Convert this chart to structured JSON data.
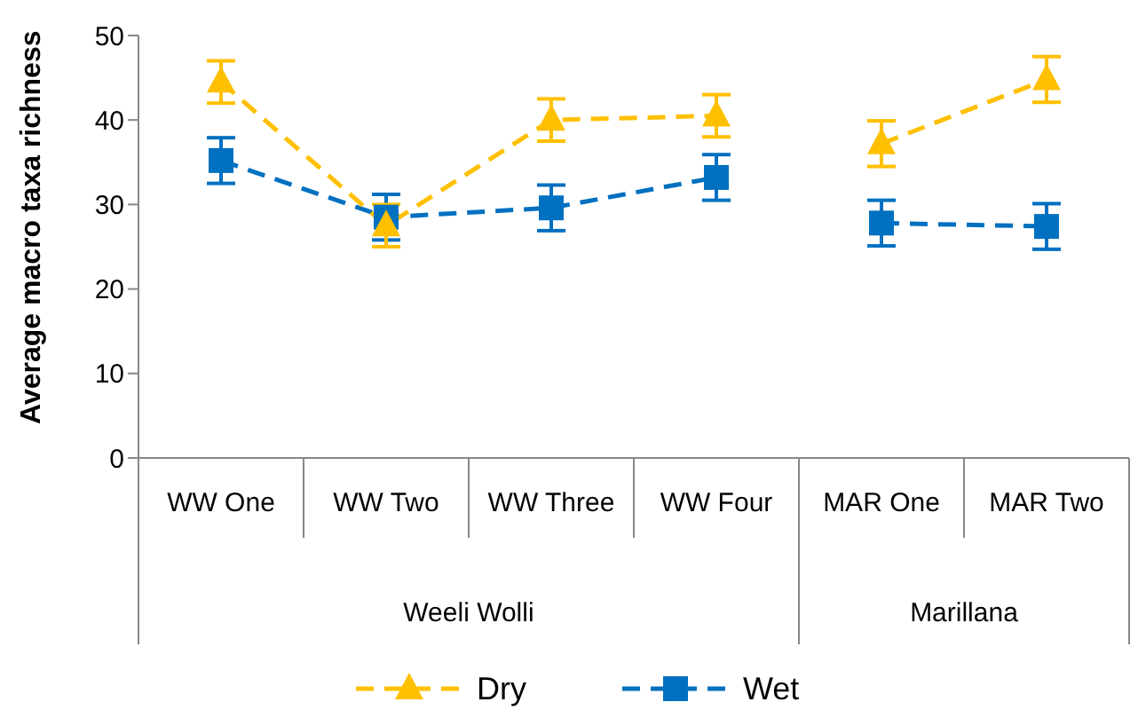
{
  "chart_data": {
    "type": "line",
    "ylabel": "Average macro taxa richness",
    "categories": [
      "WW One",
      "WW Two",
      "WW Three",
      "WW Four",
      "MAR One",
      "MAR Two"
    ],
    "series": [
      {
        "name": "Dry",
        "color": "#ffc000",
        "marker": "triangle",
        "values": [
          44.5,
          27.5,
          40,
          40.5,
          null,
          null
        ],
        "errors": [
          2.5,
          2.5,
          2.5,
          2.5,
          null,
          null
        ]
      },
      {
        "name": "Wet",
        "color": "#0070c0",
        "marker": "square",
        "values": [
          35.2,
          28.5,
          29.6,
          33.2,
          null,
          null
        ],
        "errors": [
          2.7,
          2.7,
          2.7,
          2.7,
          null,
          null
        ]
      },
      {
        "color": "#ffc000",
        "marker": "triangle",
        "values": [
          null,
          null,
          null,
          null,
          37.2,
          44.8
        ],
        "errors": [
          null,
          null,
          null,
          null,
          2.7,
          2.7
        ]
      },
      {
        "color": "#0070c0",
        "marker": "square",
        "values": [
          null,
          null,
          null,
          null,
          27.8,
          27.4
        ],
        "errors": [
          null,
          null,
          null,
          null,
          2.7,
          2.7
        ]
      }
    ],
    "annotations": [
      "Weeli Wolli",
      "Marillana"
    ],
    "ylim": [
      0,
      50
    ],
    "yticks": [
      0,
      10,
      20,
      30,
      40,
      50
    ],
    "line_style": "dashed",
    "legend": "bottom"
  }
}
